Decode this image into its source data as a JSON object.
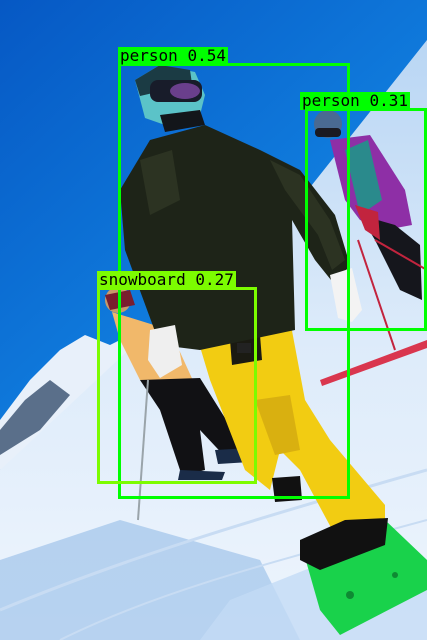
{
  "image": {
    "subject": "snowboarders and skiers on a sunny ski slope"
  },
  "detections": [
    {
      "label": "person",
      "score": "0.54",
      "color": "#00FF00"
    },
    {
      "label": "person",
      "score": "0.31",
      "color": "#00FF00"
    },
    {
      "label": "snowboard",
      "score": "0.27",
      "color": "#7CFC00"
    }
  ],
  "colors": {
    "sky": "#0A6ED6",
    "snow": "#DDEBFA",
    "jacket": "#1E2418",
    "pants": "#F2CC12",
    "board": "#19D24B"
  }
}
